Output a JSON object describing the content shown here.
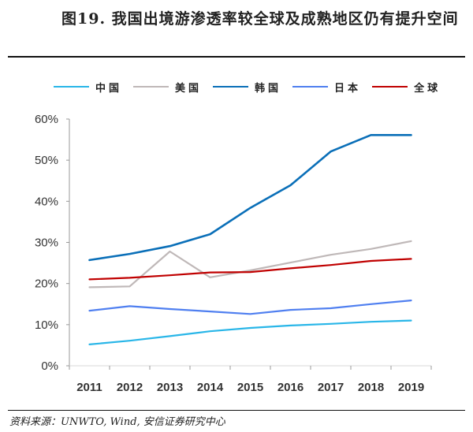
{
  "title": "图19. 我国出境游渗透率较全球及成熟地区仍有提升空间",
  "source": "资料来源：UNWTO, Wind, 安信证券研究中心",
  "chart_data": {
    "type": "line",
    "title": "图19. 我国出境游渗透率较全球及成熟地区仍有提升空间",
    "xlabel": "",
    "ylabel": "",
    "categories": [
      "2011",
      "2012",
      "2013",
      "2014",
      "2015",
      "2016",
      "2017",
      "2018",
      "2019"
    ],
    "ylim": [
      0,
      60
    ],
    "yticks": [
      0,
      10,
      20,
      30,
      40,
      50,
      60
    ],
    "ytick_labels": [
      "0%",
      "10%",
      "20%",
      "30%",
      "40%",
      "50%",
      "60%"
    ],
    "grid": false,
    "legend_position": "top",
    "series": [
      {
        "name": "中国",
        "color": "#29b6e8",
        "values": [
          5.2,
          6.1,
          7.2,
          8.4,
          9.2,
          9.8,
          10.2,
          10.7,
          11.0
        ]
      },
      {
        "name": "美国",
        "color": "#bfb8b8",
        "values": [
          19.1,
          19.3,
          27.8,
          21.5,
          23.2,
          25.1,
          27.0,
          28.4,
          30.3
        ]
      },
      {
        "name": "韩国",
        "color": "#0a6fb8",
        "values": [
          25.7,
          27.2,
          29.1,
          32.0,
          38.4,
          43.9,
          52.1,
          56.1,
          56.1
        ]
      },
      {
        "name": "日本",
        "color": "#4f7ff0",
        "values": [
          13.4,
          14.5,
          13.8,
          13.2,
          12.6,
          13.6,
          14.0,
          15.0,
          15.9
        ]
      },
      {
        "name": "全球",
        "color": "#c00000",
        "values": [
          21.0,
          21.4,
          22.0,
          22.7,
          22.8,
          23.7,
          24.5,
          25.5,
          26.0
        ]
      }
    ]
  }
}
